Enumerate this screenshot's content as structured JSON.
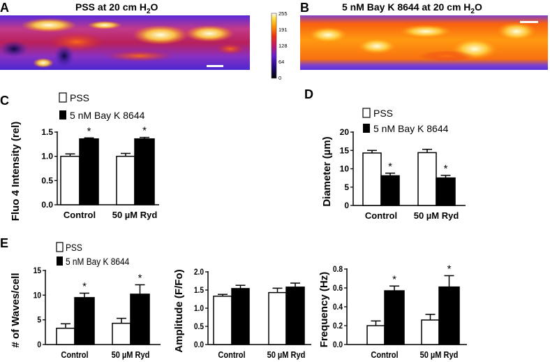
{
  "panels": {
    "A": {
      "letter": "A",
      "title": "PSS at 20 cm H",
      "sub": "2",
      "tail": "O"
    },
    "B": {
      "letter": "B",
      "title": "5 nM Bay K 8644 at 20 cm H",
      "sub": "2",
      "tail": "O"
    },
    "C": {
      "letter": "C"
    },
    "D": {
      "letter": "D"
    },
    "E": {
      "letter": "E"
    }
  },
  "colorbar": {
    "ticks": [
      "255",
      "191",
      "128",
      "64",
      "0"
    ]
  },
  "legend": {
    "pss": "PSS",
    "bay": "5 nM Bay K 8644"
  },
  "colors": {
    "pss": "#ffffff",
    "bay": "#000000"
  },
  "chart_data": [
    {
      "id": "C",
      "type": "bar",
      "ylabel": "Fluo 4 Intensity (rel)",
      "categories": [
        "Control",
        "50 µM Ryd"
      ],
      "ylim": [
        0,
        1.5
      ],
      "yticks": [
        "0.0",
        "0.5",
        "1.0",
        "1.5"
      ],
      "ytick_values": [
        0,
        0.5,
        1.0,
        1.5
      ],
      "series": [
        {
          "name": "PSS",
          "values": [
            1.0,
            1.0
          ],
          "errors": [
            0.05,
            0.06
          ]
        },
        {
          "name": "5 nM Bay K 8644",
          "values": [
            1.36,
            1.36
          ],
          "errors": [
            0.02,
            0.03
          ]
        }
      ],
      "significance": [
        "*",
        "*"
      ]
    },
    {
      "id": "D",
      "type": "bar",
      "ylabel": "Diameter (µm)",
      "categories": [
        "Control",
        "50 µM Ryd"
      ],
      "ylim": [
        0,
        20
      ],
      "yticks": [
        "0",
        "5",
        "10",
        "15",
        "20"
      ],
      "ytick_values": [
        0,
        5,
        10,
        15,
        20
      ],
      "series": [
        {
          "name": "PSS",
          "values": [
            14.3,
            14.4
          ],
          "errors": [
            0.7,
            0.9
          ]
        },
        {
          "name": "5 nM Bay K 8644",
          "values": [
            8.1,
            7.5
          ],
          "errors": [
            0.7,
            0.7
          ]
        }
      ],
      "significance": [
        "*",
        "*"
      ]
    },
    {
      "id": "E1",
      "type": "bar",
      "ylabel": "# of Waves/cell",
      "categories": [
        "Control",
        "50 µM Ryd"
      ],
      "ylim": [
        0,
        15
      ],
      "yticks": [
        "0",
        "5",
        "10",
        "15"
      ],
      "ytick_values": [
        0,
        5,
        10,
        15
      ],
      "series": [
        {
          "name": "PSS",
          "values": [
            3.3,
            4.3
          ],
          "errors": [
            0.9,
            1.0
          ]
        },
        {
          "name": "5 nM Bay K 8644",
          "values": [
            9.5,
            10.2
          ],
          "errors": [
            0.9,
            1.9
          ]
        }
      ],
      "significance": [
        "*",
        "*"
      ]
    },
    {
      "id": "E2",
      "type": "bar",
      "ylabel": "Amplitude (F/Fo)",
      "categories": [
        "Control",
        "50 µM Ryd"
      ],
      "ylim": [
        0,
        2.0
      ],
      "yticks": [
        "0.0",
        "0.5",
        "1.0",
        "1.5",
        "2.0"
      ],
      "ytick_values": [
        0,
        0.5,
        1.0,
        1.5,
        2.0
      ],
      "series": [
        {
          "name": "PSS",
          "values": [
            1.33,
            1.43
          ],
          "errors": [
            0.05,
            0.12
          ]
        },
        {
          "name": "5 nM Bay K 8644",
          "values": [
            1.54,
            1.58
          ],
          "errors": [
            0.09,
            0.11
          ]
        }
      ],
      "significance": [
        "",
        ""
      ]
    },
    {
      "id": "E3",
      "type": "bar",
      "ylabel": "Frequency  (Hz)",
      "categories": [
        "Control",
        "50 µM Ryd"
      ],
      "ylim": [
        0,
        0.8
      ],
      "yticks": [
        "0.0",
        "0.2",
        "0.4",
        "0.6",
        "0.8"
      ],
      "ytick_values": [
        0,
        0.2,
        0.4,
        0.6,
        0.8
      ],
      "series": [
        {
          "name": "PSS",
          "values": [
            0.2,
            0.26
          ],
          "errors": [
            0.05,
            0.06
          ]
        },
        {
          "name": "5 nM Bay K 8644",
          "values": [
            0.57,
            0.61
          ],
          "errors": [
            0.05,
            0.12
          ]
        }
      ],
      "significance": [
        "*",
        "*"
      ]
    }
  ]
}
